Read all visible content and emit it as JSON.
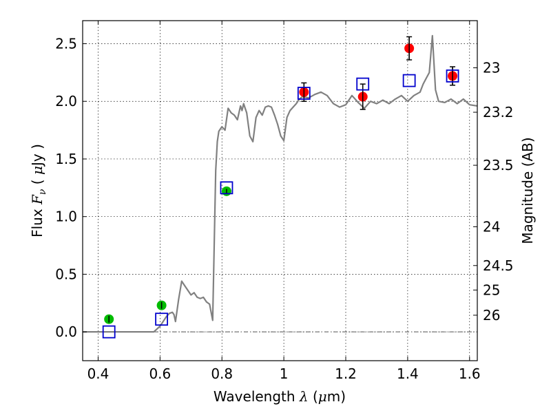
{
  "chart_data": {
    "type": "scatter",
    "title": "",
    "xlabel": {
      "prefix": "Wavelength  ",
      "symbol": "λ",
      "paren_open": " (",
      "unit_math": "μ",
      "unit_rest": "m)"
    },
    "ylabel": {
      "prefix": "Flux  ",
      "symbol": "F",
      "subscript": "ν",
      "paren_open": "  ( ",
      "unit_math": "μ",
      "unit_rest": "Jy )"
    },
    "y2label": "Magnitude (AB)",
    "xlim": [
      0.35,
      1.625
    ],
    "ylim": [
      -0.25,
      2.7
    ],
    "grid": true,
    "x_ticks": [
      {
        "value": 0.4,
        "label": "0.4"
      },
      {
        "value": 0.6,
        "label": "0.6"
      },
      {
        "value": 0.8,
        "label": "0.8"
      },
      {
        "value": 1.0,
        "label": "1"
      },
      {
        "value": 1.2,
        "label": "1.2"
      },
      {
        "value": 1.4,
        "label": "1.4"
      },
      {
        "value": 1.6,
        "label": "1.6"
      }
    ],
    "y_ticks": [
      {
        "value": 0.0,
        "label": "0.0"
      },
      {
        "value": 0.5,
        "label": "0.5"
      },
      {
        "value": 1.0,
        "label": "1.0"
      },
      {
        "value": 1.5,
        "label": "1.5"
      },
      {
        "value": 2.0,
        "label": "2.0"
      },
      {
        "value": 2.5,
        "label": "2.5"
      }
    ],
    "mag_ticks": [
      {
        "mag": 23,
        "label": "23"
      },
      {
        "mag": 23.2,
        "label": "23.2"
      },
      {
        "mag": 23.5,
        "label": "23.5"
      },
      {
        "mag": 24,
        "label": "24"
      },
      {
        "mag": 24.5,
        "label": "24.5"
      },
      {
        "mag": 25,
        "label": "25"
      },
      {
        "mag": 26,
        "label": "26"
      }
    ],
    "zero_line": {
      "y": 0,
      "color": "#555555"
    },
    "series": [
      {
        "kind": "line",
        "color": "#808080",
        "x": [
          0.35,
          0.4,
          0.45,
          0.5,
          0.55,
          0.58,
          0.6,
          0.62,
          0.63,
          0.64,
          0.645,
          0.65,
          0.66,
          0.67,
          0.68,
          0.69,
          0.7,
          0.71,
          0.72,
          0.73,
          0.74,
          0.75,
          0.76,
          0.77,
          0.78,
          0.785,
          0.79,
          0.8,
          0.81,
          0.82,
          0.83,
          0.84,
          0.85,
          0.86,
          0.865,
          0.87,
          0.88,
          0.89,
          0.9,
          0.91,
          0.92,
          0.93,
          0.94,
          0.95,
          0.96,
          0.97,
          0.98,
          0.99,
          1.0,
          1.01,
          1.02,
          1.03,
          1.04,
          1.05,
          1.06,
          1.08,
          1.1,
          1.12,
          1.14,
          1.16,
          1.18,
          1.2,
          1.22,
          1.24,
          1.26,
          1.28,
          1.3,
          1.32,
          1.34,
          1.36,
          1.38,
          1.4,
          1.42,
          1.44,
          1.45,
          1.46,
          1.47,
          1.48,
          1.49,
          1.5,
          1.52,
          1.54,
          1.56,
          1.58,
          1.6,
          1.625
        ],
        "y": [
          0.0,
          0.0,
          0.0,
          0.0,
          0.0,
          0.0,
          0.05,
          0.13,
          0.16,
          0.17,
          0.15,
          0.09,
          0.28,
          0.44,
          0.4,
          0.36,
          0.32,
          0.34,
          0.3,
          0.29,
          0.3,
          0.26,
          0.24,
          0.1,
          1.4,
          1.65,
          1.74,
          1.78,
          1.75,
          1.94,
          1.9,
          1.88,
          1.84,
          1.96,
          1.92,
          1.98,
          1.9,
          1.7,
          1.65,
          1.86,
          1.92,
          1.88,
          1.95,
          1.96,
          1.95,
          1.88,
          1.8,
          1.7,
          1.66,
          1.86,
          1.92,
          1.95,
          1.98,
          2.02,
          2.04,
          2.03,
          2.06,
          2.08,
          2.05,
          1.98,
          1.95,
          1.97,
          2.05,
          1.99,
          1.94,
          2.0,
          1.98,
          2.01,
          1.98,
          2.02,
          2.05,
          2.0,
          2.05,
          2.08,
          2.15,
          2.2,
          2.25,
          2.57,
          2.1,
          2.0,
          1.99,
          2.02,
          1.98,
          2.02,
          1.97,
          1.96
        ]
      },
      {
        "kind": "scatter",
        "marker": "circle",
        "color": "#00bb00",
        "x": [
          0.435,
          0.605,
          0.815
        ],
        "y": [
          0.11,
          0.23,
          1.22
        ],
        "yerr": [
          0.03,
          0.03,
          0.02
        ]
      },
      {
        "kind": "scatter",
        "marker": "circle",
        "color": "#ff0000",
        "x": [
          1.065,
          1.255,
          1.405,
          1.545
        ],
        "y": [
          2.08,
          2.04,
          2.46,
          2.22
        ],
        "yerr": [
          0.08,
          0.11,
          0.1,
          0.08
        ]
      },
      {
        "kind": "scatter",
        "marker": "open-square",
        "color": "#0000cc",
        "x": [
          0.435,
          0.605,
          0.815,
          1.065,
          1.255,
          1.405,
          1.545
        ],
        "y": [
          0.0,
          0.11,
          1.25,
          2.07,
          2.15,
          2.18,
          2.22
        ]
      }
    ]
  }
}
